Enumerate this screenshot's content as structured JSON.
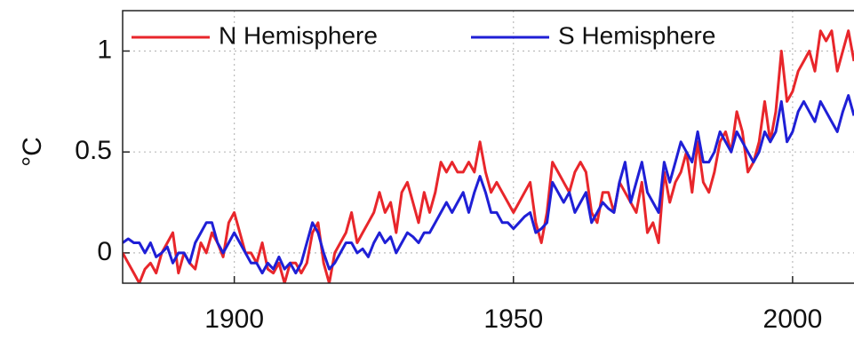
{
  "chart_data": {
    "type": "line",
    "ylabel": "°C",
    "x": [
      1880,
      1881,
      1882,
      1883,
      1884,
      1885,
      1886,
      1887,
      1888,
      1889,
      1890,
      1891,
      1892,
      1893,
      1894,
      1895,
      1896,
      1897,
      1898,
      1899,
      1900,
      1901,
      1902,
      1903,
      1904,
      1905,
      1906,
      1907,
      1908,
      1909,
      1910,
      1911,
      1912,
      1913,
      1914,
      1915,
      1916,
      1917,
      1918,
      1919,
      1920,
      1921,
      1922,
      1923,
      1924,
      1925,
      1926,
      1927,
      1928,
      1929,
      1930,
      1931,
      1932,
      1933,
      1934,
      1935,
      1936,
      1937,
      1938,
      1939,
      1940,
      1941,
      1942,
      1943,
      1944,
      1945,
      1946,
      1947,
      1948,
      1949,
      1950,
      1951,
      1952,
      1953,
      1954,
      1955,
      1956,
      1957,
      1958,
      1959,
      1960,
      1961,
      1962,
      1963,
      1964,
      1965,
      1966,
      1967,
      1968,
      1969,
      1970,
      1971,
      1972,
      1973,
      1974,
      1975,
      1976,
      1977,
      1978,
      1979,
      1980,
      1981,
      1982,
      1983,
      1984,
      1985,
      1986,
      1987,
      1988,
      1989,
      1990,
      1991,
      1992,
      1993,
      1994,
      1995,
      1996,
      1997,
      1998,
      1999,
      2000,
      2001,
      2002,
      2003,
      2004,
      2005,
      2006,
      2007,
      2008,
      2009,
      2010,
      2011
    ],
    "series": [
      {
        "name": "N Hemisphere",
        "color": "#e8262b",
        "values": [
          0.0,
          -0.05,
          -0.1,
          -0.15,
          -0.08,
          -0.05,
          -0.1,
          0.0,
          0.05,
          0.1,
          -0.1,
          0.0,
          -0.05,
          -0.08,
          0.05,
          0.0,
          0.1,
          0.05,
          -0.02,
          0.15,
          0.2,
          0.1,
          0.0,
          0.0,
          -0.05,
          0.05,
          -0.08,
          -0.1,
          -0.05,
          -0.15,
          -0.05,
          -0.05,
          -0.1,
          -0.05,
          0.1,
          0.15,
          -0.05,
          -0.15,
          0.0,
          0.05,
          0.1,
          0.2,
          0.05,
          0.1,
          0.15,
          0.2,
          0.3,
          0.2,
          0.25,
          0.1,
          0.3,
          0.35,
          0.25,
          0.15,
          0.3,
          0.2,
          0.3,
          0.45,
          0.4,
          0.45,
          0.4,
          0.4,
          0.45,
          0.4,
          0.55,
          0.4,
          0.3,
          0.35,
          0.3,
          0.25,
          0.2,
          0.25,
          0.3,
          0.35,
          0.15,
          0.05,
          0.2,
          0.45,
          0.4,
          0.35,
          0.3,
          0.4,
          0.45,
          0.4,
          0.2,
          0.15,
          0.3,
          0.3,
          0.2,
          0.35,
          0.3,
          0.25,
          0.2,
          0.35,
          0.1,
          0.15,
          0.05,
          0.4,
          0.25,
          0.35,
          0.4,
          0.5,
          0.3,
          0.55,
          0.35,
          0.3,
          0.4,
          0.55,
          0.6,
          0.5,
          0.7,
          0.6,
          0.4,
          0.45,
          0.55,
          0.75,
          0.55,
          0.7,
          1.0,
          0.75,
          0.8,
          0.9,
          0.95,
          1.0,
          0.9,
          1.1,
          1.05,
          1.1,
          0.9,
          1.0,
          1.1,
          0.95
        ]
      },
      {
        "name": "S Hemisphere",
        "color": "#1f1fd6",
        "values": [
          0.05,
          0.07,
          0.05,
          0.05,
          0.0,
          0.05,
          -0.02,
          0.0,
          0.03,
          -0.05,
          0.0,
          0.0,
          -0.05,
          0.05,
          0.1,
          0.15,
          0.15,
          0.05,
          0.0,
          0.05,
          0.1,
          0.05,
          0.0,
          -0.05,
          -0.05,
          -0.1,
          -0.05,
          -0.08,
          -0.02,
          -0.08,
          -0.05,
          -0.1,
          -0.05,
          0.05,
          0.15,
          0.1,
          0.0,
          -0.08,
          -0.05,
          0.0,
          0.05,
          0.05,
          0.0,
          0.02,
          -0.02,
          0.05,
          0.1,
          0.05,
          0.08,
          0.0,
          0.05,
          0.1,
          0.08,
          0.05,
          0.1,
          0.1,
          0.15,
          0.2,
          0.25,
          0.2,
          0.25,
          0.3,
          0.2,
          0.3,
          0.38,
          0.3,
          0.2,
          0.2,
          0.15,
          0.15,
          0.12,
          0.15,
          0.18,
          0.2,
          0.1,
          0.12,
          0.15,
          0.35,
          0.3,
          0.25,
          0.3,
          0.2,
          0.25,
          0.3,
          0.15,
          0.2,
          0.25,
          0.22,
          0.2,
          0.35,
          0.45,
          0.25,
          0.35,
          0.45,
          0.3,
          0.25,
          0.2,
          0.45,
          0.35,
          0.45,
          0.55,
          0.5,
          0.45,
          0.6,
          0.45,
          0.45,
          0.5,
          0.6,
          0.55,
          0.5,
          0.6,
          0.55,
          0.5,
          0.45,
          0.5,
          0.6,
          0.55,
          0.6,
          0.75,
          0.55,
          0.6,
          0.7,
          0.75,
          0.7,
          0.65,
          0.75,
          0.7,
          0.65,
          0.6,
          0.7,
          0.78,
          0.68
        ]
      }
    ],
    "xlim": [
      1880,
      2011
    ],
    "ylim": [
      -0.15,
      1.2
    ],
    "xticks": [
      1900,
      1950,
      2000
    ],
    "yticks": [
      0,
      0.5,
      1
    ],
    "grid": true,
    "legend": "upper left"
  }
}
